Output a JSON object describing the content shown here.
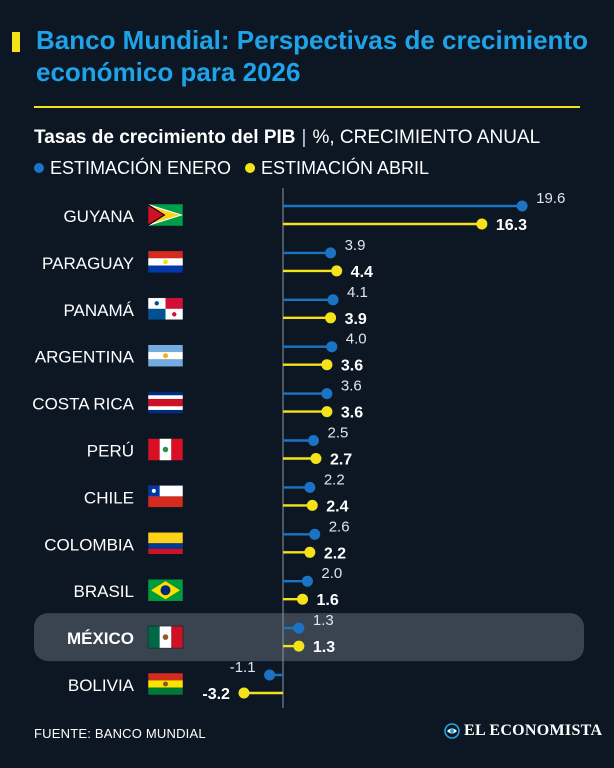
{
  "header": {
    "title": "Banco Mundial: Perspectivas de crecimiento económico para 2026",
    "subtitle_bold": "Tasas de crecimiento del PIB",
    "subtitle_sep": "|",
    "subtitle_unit": "%, CRECIMIENTO ANUAL"
  },
  "legend": {
    "january": "ESTIMACIÓN ENERO",
    "april": "ESTIMACIÓN ABRIL"
  },
  "colors": {
    "background": "#0d1724",
    "title": "#1fa3e8",
    "accent_yellow": "#f5e31a",
    "january": "#1b73c4",
    "april": "#f5e31a",
    "highlight_row": "#3a4350"
  },
  "chart_data": {
    "type": "bar",
    "orientation": "horizontal",
    "style": "lollipop",
    "title": "Tasas de crecimiento del PIB",
    "unit": "%, crecimiento anual",
    "categories": [
      "GUYANA",
      "PARAGUAY",
      "PANAMÁ",
      "ARGENTINA",
      "COSTA RICA",
      "PERÚ",
      "CHILE",
      "COLOMBIA",
      "BRASIL",
      "MÉXICO",
      "BOLIVIA"
    ],
    "highlight": "MÉXICO",
    "series": [
      {
        "name": "ESTIMACIÓN ENERO",
        "color": "#1b73c4",
        "values": [
          19.6,
          3.9,
          4.1,
          4.0,
          3.6,
          2.5,
          2.2,
          2.6,
          2.0,
          1.3,
          -1.1
        ],
        "labels": [
          "19.6",
          "3.9",
          "4.1",
          "4.0",
          "3.6",
          "2.5",
          "2.2",
          "2.6",
          "2.0",
          "1.3",
          "-1.1"
        ]
      },
      {
        "name": "ESTIMACIÓN ABRIL",
        "color": "#f5e31a",
        "values": [
          16.3,
          4.4,
          3.9,
          3.6,
          3.6,
          2.7,
          2.4,
          2.2,
          1.6,
          1.3,
          -3.2
        ],
        "labels": [
          "16.3",
          "4.4",
          "3.9",
          "3.6",
          "3.6",
          "2.7",
          "2.4",
          "2.2",
          "1.6",
          "1.3",
          "-3.2"
        ]
      }
    ]
  },
  "footer": {
    "source": "FUENTE: BANCO MUNDIAL",
    "brand": "EL ECONOMISTA",
    "brand_icon": "el-economista-logo"
  }
}
